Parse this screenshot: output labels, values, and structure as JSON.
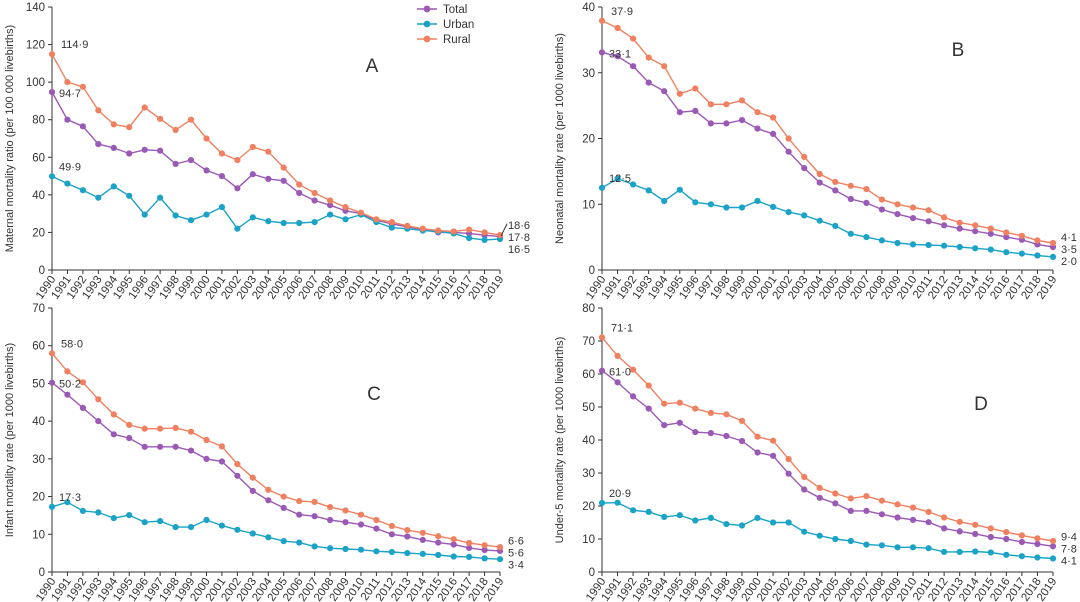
{
  "legend": [
    {
      "name": "Total",
      "color": "#9b59b6"
    },
    {
      "name": "Urban",
      "color": "#1aa3c7"
    },
    {
      "name": "Rural",
      "color": "#f0805f"
    }
  ],
  "chart_data": [
    {
      "type": "line",
      "panel_label": "A",
      "ylabel": "Maternal mortality ratio (per 100 000 livebirths)",
      "ylim": [
        0,
        140
      ],
      "yticks": [
        "0",
        "20",
        "40",
        "60",
        "80",
        "100",
        "120",
        "140"
      ],
      "x": [
        "1990",
        "1991",
        "1992",
        "1993",
        "1994",
        "1995",
        "1996",
        "1997",
        "1998",
        "1999",
        "2000",
        "2001",
        "2002",
        "2003",
        "2004",
        "2005",
        "2006",
        "2007",
        "2008",
        "2009",
        "2010",
        "2011",
        "2012",
        "2013",
        "2014",
        "2015",
        "2016",
        "2017",
        "2018",
        "2019"
      ],
      "series": [
        {
          "name": "Total",
          "values": [
            94.7,
            80,
            76.5,
            67,
            65,
            62,
            64,
            63.5,
            56.5,
            58.5,
            53,
            50,
            43.5,
            51,
            48.5,
            47.5,
            41,
            37,
            34.5,
            31.5,
            30,
            26.5,
            24.5,
            23,
            21.5,
            20,
            20,
            19.5,
            18.5,
            17.8
          ]
        },
        {
          "name": "Urban",
          "values": [
            49.9,
            46,
            42.5,
            38.5,
            44.5,
            39.5,
            29.5,
            38.5,
            29,
            26.5,
            29.5,
            33.5,
            22,
            28,
            26,
            25,
            25,
            25.5,
            29.5,
            27,
            29.5,
            25.5,
            22.5,
            22,
            21,
            20.5,
            19.5,
            17,
            16,
            16.5
          ]
        },
        {
          "name": "Rural",
          "values": [
            114.9,
            100,
            97.5,
            85,
            77.5,
            76,
            86.5,
            80.5,
            74.5,
            80,
            70,
            62,
            58.5,
            65.5,
            63,
            54.5,
            45.5,
            41,
            37,
            33.5,
            30.5,
            27,
            25.5,
            23.5,
            22,
            21,
            20.5,
            21.5,
            20,
            18.6
          ]
        }
      ],
      "start_labels": [
        "94·7",
        "49·9",
        "114·9"
      ],
      "end_labels": [
        "18·6",
        "17·8",
        "16·5"
      ]
    },
    {
      "type": "line",
      "panel_label": "B",
      "ylabel": "Neonatal mortality rate (per 1000 livebirths)",
      "ylim": [
        0,
        40
      ],
      "yticks": [
        "0",
        "10",
        "20",
        "30",
        "40"
      ],
      "x": [
        "1990",
        "1991",
        "1992",
        "1993",
        "1994",
        "1995",
        "1996",
        "1997",
        "1998",
        "1999",
        "2000",
        "2001",
        "2002",
        "2003",
        "2004",
        "2005",
        "2006",
        "2007",
        "2008",
        "2009",
        "2010",
        "2011",
        "2012",
        "2013",
        "2014",
        "2015",
        "2016",
        "2017",
        "2018",
        "2019"
      ],
      "series": [
        {
          "name": "Total",
          "values": [
            33.1,
            32.5,
            31,
            28.5,
            27.2,
            24,
            24.2,
            22.3,
            22.3,
            22.8,
            21.5,
            20.7,
            18,
            15.5,
            13.3,
            12.1,
            10.8,
            10.2,
            9.2,
            8.5,
            7.9,
            7.4,
            6.8,
            6.3,
            5.9,
            5.5,
            5,
            4.6,
            3.9,
            3.5
          ]
        },
        {
          "name": "Urban",
          "values": [
            12.5,
            13.9,
            13,
            12.1,
            10.5,
            12.2,
            10.3,
            10,
            9.5,
            9.5,
            10.5,
            9.6,
            8.8,
            8.3,
            7.5,
            6.7,
            5.5,
            5,
            4.5,
            4.1,
            3.9,
            3.8,
            3.7,
            3.5,
            3.3,
            3.1,
            2.7,
            2.5,
            2.2,
            2.0
          ]
        },
        {
          "name": "Rural",
          "values": [
            37.9,
            36.8,
            35.2,
            32.3,
            31,
            26.8,
            27.6,
            25.2,
            25.2,
            25.8,
            24,
            23.2,
            20,
            17.2,
            14.6,
            13.4,
            12.8,
            12.3,
            10.7,
            10,
            9.5,
            9.1,
            8,
            7.2,
            6.8,
            6.3,
            5.7,
            5.2,
            4.5,
            4.1
          ]
        }
      ],
      "start_labels": [
        "33·1",
        "12·5",
        "37·9"
      ],
      "end_labels": [
        "4·1",
        "3·5",
        "2·0"
      ]
    },
    {
      "type": "line",
      "panel_label": "C",
      "ylabel": "Infant mortality rate (per 1000 livebirths)",
      "ylim": [
        0,
        70
      ],
      "yticks": [
        "0",
        "10",
        "20",
        "30",
        "40",
        "50",
        "60",
        "70"
      ],
      "x": [
        "1990",
        "1991",
        "1992",
        "1993",
        "1994",
        "1995",
        "1996",
        "1997",
        "1998",
        "1999",
        "2000",
        "2001",
        "2002",
        "2003",
        "2004",
        "2005",
        "2006",
        "2007",
        "2008",
        "2009",
        "2010",
        "2011",
        "2012",
        "2013",
        "2014",
        "2015",
        "2016",
        "2017",
        "2018",
        "2019"
      ],
      "series": [
        {
          "name": "Total",
          "values": [
            50.2,
            47,
            43.5,
            40,
            36.5,
            35.5,
            33.2,
            33.2,
            33.2,
            32.2,
            30,
            29.3,
            25.5,
            21.5,
            19,
            17,
            15.2,
            14.8,
            13.8,
            13.2,
            12.6,
            11.5,
            10,
            9.4,
            8.5,
            7.8,
            7.3,
            6.4,
            5.8,
            5.6
          ]
        },
        {
          "name": "Urban",
          "values": [
            17.3,
            18.5,
            16.2,
            15.8,
            14.3,
            15.1,
            13.2,
            13.5,
            11.9,
            11.9,
            13.8,
            12.3,
            11.2,
            10.2,
            9.2,
            8.2,
            7.8,
            6.8,
            6.3,
            6.1,
            5.9,
            5.5,
            5.3,
            5,
            4.8,
            4.5,
            4.1,
            4,
            3.6,
            3.4
          ]
        },
        {
          "name": "Rural",
          "values": [
            58.0,
            53.2,
            50.3,
            45.8,
            41.8,
            39,
            38,
            38,
            38.2,
            37.2,
            35,
            33.3,
            28.6,
            25,
            21.8,
            20,
            18.8,
            18.6,
            17.2,
            16.3,
            15.2,
            13.8,
            12.2,
            11.1,
            10.4,
            9.5,
            8.7,
            7.7,
            7.1,
            6.6
          ]
        }
      ],
      "start_labels": [
        "50·2",
        "17·3",
        "58·0"
      ],
      "end_labels": [
        "6·6",
        "5·6",
        "3·4"
      ]
    },
    {
      "type": "line",
      "panel_label": "D",
      "ylabel": "Under-5 mortality rate (per 1000 livebirths)",
      "ylim": [
        0,
        80
      ],
      "yticks": [
        "0",
        "10",
        "20",
        "30",
        "40",
        "50",
        "60",
        "70",
        "80"
      ],
      "x": [
        "1990",
        "1991",
        "1992",
        "1993",
        "1994",
        "1995",
        "1996",
        "1997",
        "1998",
        "1999",
        "2000",
        "2001",
        "2002",
        "2003",
        "2004",
        "2005",
        "2006",
        "2007",
        "2008",
        "2009",
        "2010",
        "2011",
        "2012",
        "2013",
        "2014",
        "2015",
        "2016",
        "2017",
        "2018",
        "2019"
      ],
      "series": [
        {
          "name": "Total",
          "values": [
            61.0,
            57.5,
            53.2,
            49.5,
            44.5,
            45.2,
            42.4,
            42.1,
            41.2,
            39.7,
            36.2,
            35.2,
            29.8,
            25,
            22.5,
            20.8,
            18.5,
            18.5,
            17.5,
            16.5,
            15.8,
            15.1,
            13.2,
            12.3,
            11.5,
            10.6,
            10,
            9.1,
            8.5,
            7.8
          ]
        },
        {
          "name": "Urban",
          "values": [
            20.9,
            21,
            18.7,
            18.2,
            16.7,
            17.2,
            15.6,
            16.4,
            14.5,
            14.1,
            16.4,
            15,
            15,
            12.2,
            11,
            10,
            9.4,
            8.3,
            8.1,
            7.5,
            7.5,
            7.2,
            6.1,
            6.1,
            6.2,
            5.9,
            5.2,
            4.8,
            4.4,
            4.1
          ]
        },
        {
          "name": "Rural",
          "values": [
            71.1,
            65.5,
            61.3,
            56.5,
            51,
            51.3,
            49.5,
            48.2,
            47.8,
            45.8,
            41,
            39.8,
            34.2,
            28.8,
            25.5,
            23.8,
            22.3,
            23,
            21.6,
            20.5,
            19.5,
            18.2,
            16.5,
            15.2,
            14.3,
            13.2,
            12.1,
            11.1,
            10.2,
            9.4
          ]
        }
      ],
      "start_labels": [
        "61·0",
        "20·9",
        "71·1"
      ],
      "end_labels": [
        "9·4",
        "7·8",
        "4·1"
      ]
    }
  ]
}
